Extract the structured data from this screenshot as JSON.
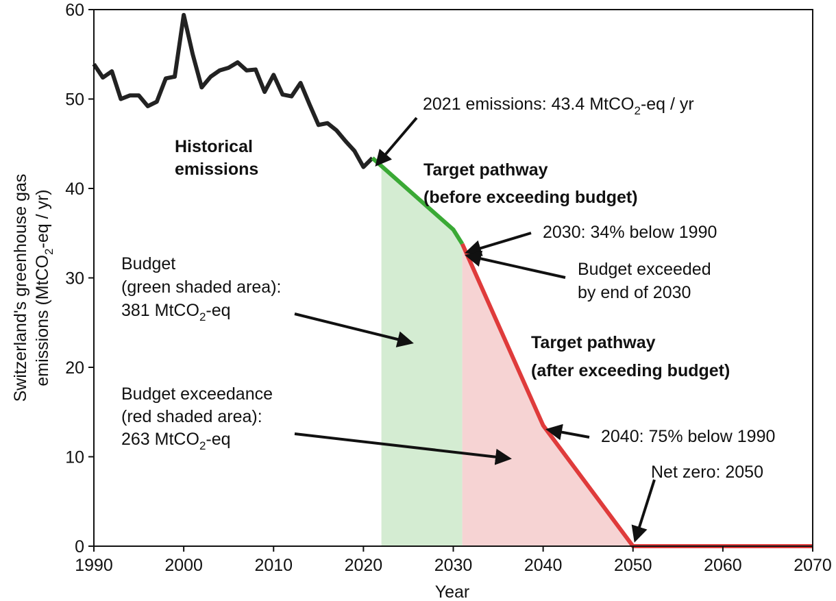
{
  "chart_data": {
    "type": "line",
    "xlabel": "Year",
    "ylabel": [
      [
        "Switzerland's greenhouse gas"
      ],
      [
        "emissions (MtCO",
        "2",
        "-eq / yr)"
      ]
    ],
    "xlim": [
      1990,
      2070
    ],
    "xticks": [
      1990,
      2000,
      2010,
      2020,
      2030,
      2040,
      2050,
      2060,
      2070
    ],
    "ylim": [
      0,
      60
    ],
    "yticks": [
      0,
      10,
      20,
      30,
      40,
      50,
      60
    ],
    "series": [
      {
        "color": "#222222",
        "x": [
          1990,
          1991,
          1992,
          1993,
          1994,
          1995,
          1996,
          1997,
          1998,
          1999,
          2000,
          2001,
          2002,
          2003,
          2004,
          2005,
          2006,
          2007,
          2008,
          2009,
          2010,
          2011,
          2012,
          2013,
          2014,
          2015,
          2016,
          2017,
          2018,
          2019,
          2020,
          2021
        ],
        "values": [
          53.9,
          52.4,
          53.1,
          50.0,
          50.4,
          50.4,
          49.2,
          49.7,
          52.3,
          52.5,
          59.4,
          55.0,
          51.3,
          52.5,
          53.2,
          53.5,
          54.1,
          53.2,
          53.3,
          50.8,
          52.7,
          50.5,
          50.3,
          51.8,
          49.4,
          47.1,
          47.3,
          46.5,
          45.3,
          44.2,
          42.4,
          43.4
        ]
      },
      {
        "color": "#3aa935",
        "fill": "#d4ecd2",
        "fill_from": 2022,
        "x": [
          2021,
          2030,
          2031
        ],
        "values": [
          43.4,
          35.4,
          33.8
        ]
      },
      {
        "color": "#df3b3b",
        "fill": "#f6d3d3",
        "fill_from": 2031,
        "x": [
          2031,
          2040,
          2050,
          2070
        ],
        "values": [
          33.8,
          13.5,
          0,
          0
        ]
      }
    ],
    "annotations": [
      {
        "lines": [
          [
            "2021 emissions: 43.4 MtCO",
            "2",
            "-eq / yr"
          ]
        ]
      },
      {
        "bold": true,
        "lines": [
          [
            "Historical"
          ],
          [
            "emissions"
          ]
        ]
      },
      {
        "bold": true,
        "lines": [
          [
            "Target pathway"
          ],
          [
            "(before exceeding budget)"
          ]
        ]
      },
      {
        "lines": [
          [
            "2030: 34% below 1990"
          ]
        ]
      },
      {
        "lines": [
          [
            "Budget exceeded"
          ],
          [
            "by end of 2030"
          ]
        ]
      },
      {
        "lines": [
          [
            "Budget"
          ],
          [
            "(green shaded area):"
          ],
          [
            "381 MtCO",
            "2",
            "-eq"
          ]
        ]
      },
      {
        "bold": true,
        "lines": [
          [
            "Target pathway"
          ],
          [
            "(after exceeding budget)"
          ]
        ]
      },
      {
        "lines": [
          [
            "Budget exceedance"
          ],
          [
            "(red shaded area):"
          ],
          [
            "263 MtCO",
            "2",
            "-eq"
          ]
        ]
      },
      {
        "lines": [
          [
            "2040: 75% below 1990"
          ]
        ]
      },
      {
        "lines": [
          [
            "Net zero: 2050"
          ]
        ]
      }
    ]
  }
}
